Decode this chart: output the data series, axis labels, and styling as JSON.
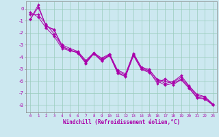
{
  "xlabel": "Windchill (Refroidissement éolien,°C)",
  "bg_color": "#cce8f0",
  "line_color": "#aa00aa",
  "grid_color": "#99ccbb",
  "xlim": [
    -0.5,
    23.5
  ],
  "ylim": [
    -8.6,
    0.6
  ],
  "yticks": [
    0,
    -1,
    -2,
    -3,
    -4,
    -5,
    -6,
    -7,
    -8
  ],
  "xticks": [
    0,
    1,
    2,
    3,
    4,
    5,
    6,
    7,
    8,
    9,
    10,
    11,
    12,
    13,
    14,
    15,
    16,
    17,
    18,
    19,
    20,
    21,
    22,
    23
  ],
  "all_lines": [
    [
      -0.9,
      0.3,
      -1.5,
      -1.7,
      -3.2,
      -3.4,
      -3.7,
      -4.5,
      -3.7,
      -4.3,
      -3.85,
      -5.3,
      -5.6,
      -3.85,
      -5.0,
      -5.2,
      -6.2,
      -5.8,
      -6.3,
      -5.9,
      -6.6,
      -7.4,
      -7.5,
      -8.0
    ],
    [
      -0.9,
      0.1,
      -1.4,
      -1.8,
      -3.0,
      -3.3,
      -3.55,
      -4.3,
      -3.65,
      -4.1,
      -3.75,
      -5.1,
      -5.4,
      -3.7,
      -4.85,
      -5.05,
      -5.9,
      -6.0,
      -6.1,
      -5.7,
      -6.45,
      -7.2,
      -7.35,
      -7.95
    ],
    [
      -0.5,
      -0.5,
      -1.3,
      -2.1,
      -3.1,
      -3.45,
      -3.6,
      -4.4,
      -3.7,
      -4.2,
      -3.8,
      -5.2,
      -5.5,
      -3.75,
      -4.9,
      -5.15,
      -5.85,
      -6.2,
      -6.05,
      -5.55,
      -6.4,
      -7.1,
      -7.3,
      -7.9
    ],
    [
      -0.3,
      -0.7,
      -1.6,
      -2.3,
      -3.3,
      -3.5,
      -3.65,
      -4.55,
      -3.75,
      -4.35,
      -3.9,
      -5.35,
      -5.65,
      -3.9,
      -5.05,
      -5.3,
      -6.0,
      -6.35,
      -6.2,
      -5.85,
      -6.55,
      -7.35,
      -7.45,
      -8.0
    ]
  ]
}
